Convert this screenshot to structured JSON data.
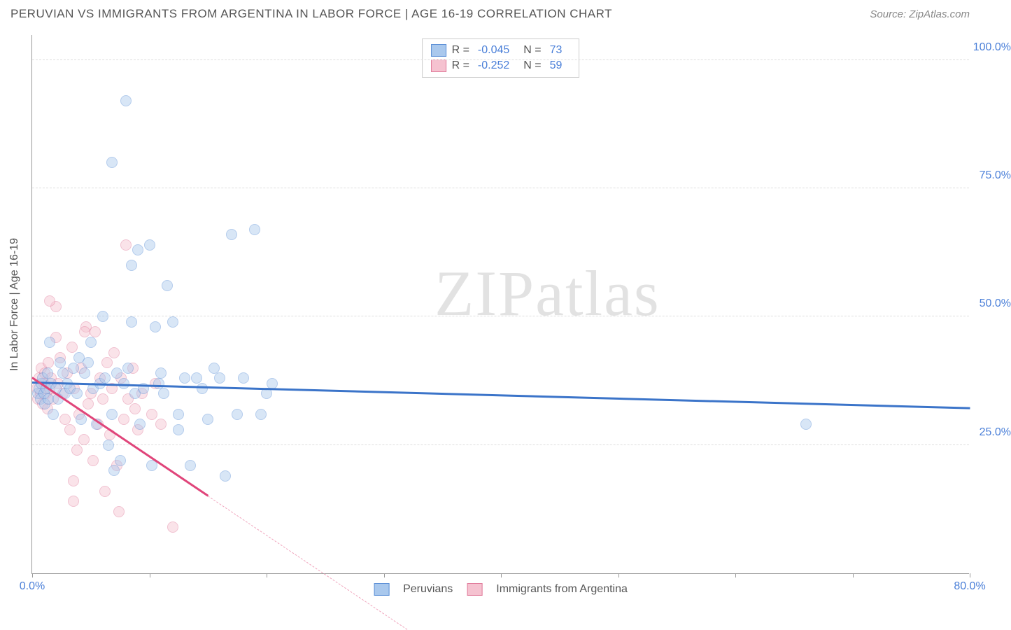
{
  "header": {
    "title": "PERUVIAN VS IMMIGRANTS FROM ARGENTINA IN LABOR FORCE | AGE 16-19 CORRELATION CHART",
    "source_prefix": "Source: ",
    "source_name": "ZipAtlas.com"
  },
  "watermark": {
    "part1": "ZIP",
    "part2": "atlas"
  },
  "chart": {
    "type": "scatter",
    "ylabel": "In Labor Force | Age 16-19",
    "background_color": "#ffffff",
    "grid_color": "#dddddd",
    "axis_color": "#999999",
    "xlim": [
      0,
      80
    ],
    "ylim": [
      0,
      105
    ],
    "xticks": [
      0,
      10,
      20,
      30,
      40,
      50,
      60,
      70,
      80
    ],
    "xtick_labels": {
      "0": "0.0%",
      "80": "80.0%"
    },
    "yticks": [
      25,
      50,
      75,
      100
    ],
    "ytick_labels": {
      "25": "25.0%",
      "50": "50.0%",
      "75": "75.0%",
      "100": "100.0%"
    },
    "tick_color": "#4a7fd8",
    "label_fontsize": 16,
    "title_fontsize": 17,
    "marker_radius": 8,
    "marker_opacity": 0.45,
    "series": [
      {
        "name": "Peruvians",
        "color_fill": "#a9c8ed",
        "color_stroke": "#5b8fd6",
        "R": "-0.045",
        "N": "73",
        "trend": {
          "x1": 0,
          "y1": 37,
          "x2": 80,
          "y2": 32,
          "color": "#3b74c9",
          "width": 2.5
        },
        "points": [
          [
            0.5,
            35
          ],
          [
            0.6,
            36
          ],
          [
            0.7,
            34
          ],
          [
            0.8,
            37
          ],
          [
            0.9,
            38
          ],
          [
            1.0,
            35
          ],
          [
            1.1,
            33
          ],
          [
            1.2,
            36
          ],
          [
            1.3,
            39
          ],
          [
            1.4,
            34
          ],
          [
            1.5,
            45
          ],
          [
            1.6,
            37
          ],
          [
            1.8,
            31
          ],
          [
            2.0,
            36
          ],
          [
            2.2,
            34
          ],
          [
            2.4,
            41
          ],
          [
            2.6,
            39
          ],
          [
            2.8,
            35
          ],
          [
            3.0,
            37
          ],
          [
            3.2,
            36
          ],
          [
            3.5,
            40
          ],
          [
            3.8,
            35
          ],
          [
            4.0,
            42
          ],
          [
            4.2,
            30
          ],
          [
            4.5,
            39
          ],
          [
            4.8,
            41
          ],
          [
            5.0,
            45
          ],
          [
            5.2,
            36
          ],
          [
            5.5,
            29
          ],
          [
            5.8,
            37
          ],
          [
            6.0,
            50
          ],
          [
            6.2,
            38
          ],
          [
            6.5,
            25
          ],
          [
            6.8,
            31
          ],
          [
            7.0,
            20
          ],
          [
            7.2,
            39
          ],
          [
            7.5,
            22
          ],
          [
            7.8,
            37
          ],
          [
            8.0,
            92
          ],
          [
            8.2,
            40
          ],
          [
            8.5,
            49
          ],
          [
            8.8,
            35
          ],
          [
            9.0,
            63
          ],
          [
            9.2,
            29
          ],
          [
            9.5,
            36
          ],
          [
            6.8,
            80
          ],
          [
            10.0,
            64
          ],
          [
            10.2,
            21
          ],
          [
            10.5,
            48
          ],
          [
            10.8,
            37
          ],
          [
            11.0,
            39
          ],
          [
            11.2,
            35
          ],
          [
            11.5,
            56
          ],
          [
            12.0,
            49
          ],
          [
            12.5,
            28
          ],
          [
            13.0,
            38
          ],
          [
            13.5,
            21
          ],
          [
            14.0,
            38
          ],
          [
            14.5,
            36
          ],
          [
            15.0,
            30
          ],
          [
            15.5,
            40
          ],
          [
            16.0,
            38
          ],
          [
            16.5,
            19
          ],
          [
            17.0,
            66
          ],
          [
            17.5,
            31
          ],
          [
            18.0,
            38
          ],
          [
            19.0,
            67
          ],
          [
            19.5,
            31
          ],
          [
            20.0,
            35
          ],
          [
            20.5,
            37
          ],
          [
            66.0,
            29
          ],
          [
            8.5,
            60
          ],
          [
            12.5,
            31
          ]
        ]
      },
      {
        "name": "Immigrants from Argentina",
        "color_fill": "#f5c2d0",
        "color_stroke": "#e07a9a",
        "R": "-0.252",
        "N": "59",
        "trend": {
          "x1": 0,
          "y1": 38,
          "x2": 15,
          "y2": 15,
          "color": "#e0457a",
          "width": 2.5
        },
        "trend_dashed": {
          "x1": 15,
          "y1": 15,
          "x2": 32,
          "y2": -11,
          "color": "#f0a5bd"
        },
        "points": [
          [
            0.4,
            36
          ],
          [
            0.5,
            34
          ],
          [
            0.6,
            38
          ],
          [
            0.7,
            35
          ],
          [
            0.8,
            40
          ],
          [
            0.9,
            33
          ],
          [
            1.0,
            37
          ],
          [
            1.1,
            39
          ],
          [
            1.2,
            35
          ],
          [
            1.3,
            32
          ],
          [
            1.4,
            41
          ],
          [
            1.5,
            36
          ],
          [
            1.6,
            38
          ],
          [
            1.8,
            34
          ],
          [
            2.0,
            46
          ],
          [
            2.2,
            37
          ],
          [
            2.4,
            42
          ],
          [
            2.6,
            35
          ],
          [
            2.8,
            30
          ],
          [
            3.0,
            39
          ],
          [
            3.2,
            28
          ],
          [
            3.4,
            44
          ],
          [
            3.6,
            36
          ],
          [
            3.8,
            24
          ],
          [
            4.0,
            31
          ],
          [
            4.2,
            40
          ],
          [
            4.4,
            26
          ],
          [
            4.6,
            48
          ],
          [
            4.8,
            33
          ],
          [
            5.0,
            35
          ],
          [
            5.2,
            22
          ],
          [
            5.4,
            47
          ],
          [
            5.6,
            29
          ],
          [
            5.8,
            38
          ],
          [
            6.0,
            34
          ],
          [
            6.2,
            16
          ],
          [
            6.4,
            41
          ],
          [
            6.6,
            27
          ],
          [
            6.8,
            36
          ],
          [
            7.0,
            43
          ],
          [
            7.2,
            21
          ],
          [
            7.4,
            12
          ],
          [
            7.6,
            38
          ],
          [
            7.8,
            30
          ],
          [
            2.0,
            52
          ],
          [
            8.2,
            34
          ],
          [
            3.5,
            18
          ],
          [
            8.6,
            40
          ],
          [
            8.8,
            32
          ],
          [
            9.0,
            28
          ],
          [
            1.5,
            53
          ],
          [
            9.4,
            35
          ],
          [
            3.5,
            14
          ],
          [
            4.5,
            47
          ],
          [
            8.0,
            64
          ],
          [
            10.2,
            31
          ],
          [
            10.5,
            37
          ],
          [
            12.0,
            9
          ],
          [
            11.0,
            29
          ]
        ]
      }
    ],
    "bottom_legend": [
      {
        "swatch_fill": "#a9c8ed",
        "swatch_stroke": "#5b8fd6",
        "label": "Peruvians"
      },
      {
        "swatch_fill": "#f5c2d0",
        "swatch_stroke": "#e07a9a",
        "label": "Immigrants from Argentina"
      }
    ]
  }
}
